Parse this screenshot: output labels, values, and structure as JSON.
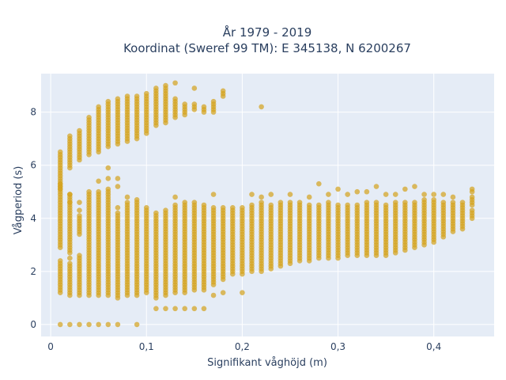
{
  "chart_data": {
    "type": "scatter",
    "title_line1": "År 1979 - 2019",
    "title_line2": "Koordinat (Sweref 99 TM): E 345138, N 6200267",
    "xlabel": "Signifikant våghöjd (m)",
    "ylabel": "Vågperiod (s)",
    "xlim": [
      -0.01,
      0.463
    ],
    "ylim": [
      -0.45,
      9.45
    ],
    "x_ticks": [
      0,
      0.1,
      0.2,
      0.3,
      0.4
    ],
    "x_tick_labels": [
      "0",
      "0,1",
      "0,2",
      "0,3",
      "0,4"
    ],
    "y_ticks": [
      0,
      2,
      4,
      6,
      8
    ],
    "y_tick_labels": [
      "0",
      "2",
      "4",
      "6",
      "8"
    ],
    "grid": true,
    "plot_background": "#e5ecf6",
    "marker_color": "#d4a21c",
    "marker_opacity": 0.7,
    "columns": [
      {
        "x": 0.01,
        "ranges": [
          [
            1.2,
            2.4
          ],
          [
            2.9,
            5.3
          ],
          [
            5.1,
            6.5
          ]
        ],
        "singles": [
          0.0
        ]
      },
      {
        "x": 0.02,
        "ranges": [
          [
            1.1,
            2.3
          ],
          [
            2.7,
            4.9
          ],
          [
            5.9,
            7.1
          ]
        ],
        "singles": [
          0.0,
          2.5,
          4.6,
          4.9
        ]
      },
      {
        "x": 0.03,
        "ranges": [
          [
            1.1,
            2.6
          ],
          [
            3.4,
            4.1
          ],
          [
            6.2,
            7.3
          ]
        ],
        "singles": [
          0.0,
          4.3,
          4.6
        ]
      },
      {
        "x": 0.04,
        "ranges": [
          [
            1.1,
            5.0
          ],
          [
            6.4,
            7.8
          ]
        ],
        "singles": [
          0.0
        ]
      },
      {
        "x": 0.05,
        "ranges": [
          [
            1.1,
            5.0
          ],
          [
            6.5,
            8.2
          ]
        ],
        "singles": [
          0.0,
          5.4
        ]
      },
      {
        "x": 0.06,
        "ranges": [
          [
            1.1,
            5.1
          ],
          [
            6.7,
            8.4
          ]
        ],
        "singles": [
          0.0,
          5.5,
          5.9
        ]
      },
      {
        "x": 0.07,
        "ranges": [
          [
            1.0,
            4.2
          ],
          [
            6.8,
            8.5
          ]
        ],
        "singles": [
          0.0,
          4.4,
          5.2,
          5.5
        ]
      },
      {
        "x": 0.08,
        "ranges": [
          [
            1.1,
            4.6
          ],
          [
            6.9,
            8.6
          ]
        ],
        "singles": [
          4.8
        ]
      },
      {
        "x": 0.09,
        "ranges": [
          [
            1.1,
            4.7
          ],
          [
            7.0,
            8.6
          ]
        ],
        "singles": [
          0.0
        ]
      },
      {
        "x": 0.1,
        "ranges": [
          [
            1.2,
            4.4
          ],
          [
            7.2,
            8.7
          ]
        ],
        "singles": []
      },
      {
        "x": 0.11,
        "ranges": [
          [
            1.0,
            4.2
          ],
          [
            7.5,
            8.9
          ]
        ],
        "singles": [
          0.6
        ]
      },
      {
        "x": 0.12,
        "ranges": [
          [
            1.1,
            4.3
          ],
          [
            7.6,
            9.0
          ]
        ],
        "singles": [
          0.6
        ]
      },
      {
        "x": 0.13,
        "ranges": [
          [
            1.2,
            4.5
          ],
          [
            7.8,
            8.5
          ]
        ],
        "singles": [
          4.8,
          9.1,
          0.6
        ]
      },
      {
        "x": 0.14,
        "ranges": [
          [
            1.2,
            4.6
          ],
          [
            7.9,
            8.3
          ]
        ],
        "singles": [
          0.6
        ]
      },
      {
        "x": 0.15,
        "ranges": [
          [
            1.3,
            4.6
          ],
          [
            8.1,
            8.3
          ]
        ],
        "singles": [
          8.9,
          0.6
        ]
      },
      {
        "x": 0.16,
        "ranges": [
          [
            1.3,
            4.5
          ],
          [
            8.0,
            8.2
          ]
        ],
        "singles": [
          0.6
        ]
      },
      {
        "x": 0.17,
        "ranges": [
          [
            1.5,
            4.4
          ],
          [
            8.0,
            8.4
          ]
        ],
        "singles": [
          4.9,
          1.1
        ]
      },
      {
        "x": 0.18,
        "ranges": [
          [
            1.7,
            4.4
          ],
          [
            8.6,
            8.8
          ]
        ],
        "singles": [
          1.2
        ]
      },
      {
        "x": 0.19,
        "ranges": [
          [
            1.9,
            4.4
          ]
        ],
        "singles": []
      },
      {
        "x": 0.2,
        "ranges": [
          [
            1.9,
            4.4
          ]
        ],
        "singles": [
          1.2
        ]
      },
      {
        "x": 0.21,
        "ranges": [
          [
            2.0,
            4.5
          ]
        ],
        "singles": [
          4.9
        ]
      },
      {
        "x": 0.22,
        "ranges": [
          [
            2.0,
            4.6
          ]
        ],
        "singles": [
          4.8,
          8.2
        ]
      },
      {
        "x": 0.23,
        "ranges": [
          [
            2.1,
            4.5
          ]
        ],
        "singles": [
          4.9
        ]
      },
      {
        "x": 0.24,
        "ranges": [
          [
            2.2,
            4.6
          ]
        ],
        "singles": []
      },
      {
        "x": 0.25,
        "ranges": [
          [
            2.3,
            4.6
          ]
        ],
        "singles": [
          4.9
        ]
      },
      {
        "x": 0.26,
        "ranges": [
          [
            2.4,
            4.6
          ]
        ],
        "singles": []
      },
      {
        "x": 0.27,
        "ranges": [
          [
            2.4,
            4.5
          ]
        ],
        "singles": [
          4.8
        ]
      },
      {
        "x": 0.28,
        "ranges": [
          [
            2.5,
            4.5
          ]
        ],
        "singles": [
          5.3
        ]
      },
      {
        "x": 0.29,
        "ranges": [
          [
            2.5,
            4.6
          ]
        ],
        "singles": [
          4.9
        ]
      },
      {
        "x": 0.3,
        "ranges": [
          [
            2.5,
            4.5
          ]
        ],
        "singles": [
          5.1
        ]
      },
      {
        "x": 0.31,
        "ranges": [
          [
            2.6,
            4.5
          ]
        ],
        "singles": [
          4.9
        ]
      },
      {
        "x": 0.32,
        "ranges": [
          [
            2.6,
            4.5
          ]
        ],
        "singles": [
          5.0
        ]
      },
      {
        "x": 0.33,
        "ranges": [
          [
            2.6,
            4.6
          ]
        ],
        "singles": [
          5.0
        ]
      },
      {
        "x": 0.34,
        "ranges": [
          [
            2.6,
            4.6
          ]
        ],
        "singles": [
          5.2
        ]
      },
      {
        "x": 0.35,
        "ranges": [
          [
            2.6,
            4.5
          ]
        ],
        "singles": [
          4.9
        ]
      },
      {
        "x": 0.36,
        "ranges": [
          [
            2.7,
            4.6
          ]
        ],
        "singles": [
          4.9
        ]
      },
      {
        "x": 0.37,
        "ranges": [
          [
            2.8,
            4.6
          ]
        ],
        "singles": [
          5.1
        ]
      },
      {
        "x": 0.38,
        "ranges": [
          [
            2.9,
            4.6
          ]
        ],
        "singles": [
          5.2
        ]
      },
      {
        "x": 0.39,
        "ranges": [
          [
            3.0,
            4.7
          ]
        ],
        "singles": [
          4.9
        ]
      },
      {
        "x": 0.4,
        "ranges": [
          [
            3.1,
            4.7
          ]
        ],
        "singles": [
          4.9
        ]
      },
      {
        "x": 0.41,
        "ranges": [
          [
            3.3,
            4.6
          ]
        ],
        "singles": [
          4.9
        ]
      },
      {
        "x": 0.42,
        "ranges": [
          [
            3.5,
            4.6
          ]
        ],
        "singles": [
          4.8
        ]
      },
      {
        "x": 0.43,
        "ranges": [
          [
            3.6,
            4.6
          ]
        ],
        "singles": []
      },
      {
        "x": 0.44,
        "ranges": [
          [
            4.0,
            4.3
          ],
          [
            4.5,
            4.8
          ]
        ],
        "singles": [
          5.0,
          5.1
        ]
      }
    ]
  }
}
